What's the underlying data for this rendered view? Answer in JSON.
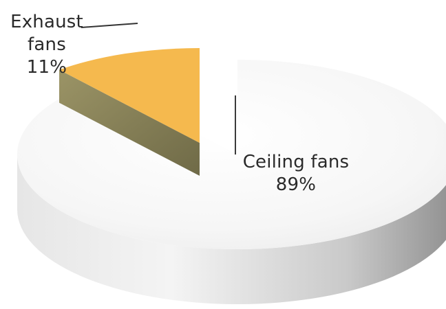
{
  "chart_data": {
    "type": "pie",
    "title": "",
    "style": "3d-exploded",
    "slices": [
      {
        "label": "Ceiling fans",
        "percent_label": "89%",
        "value": 89,
        "color": "#f2f2f2"
      },
      {
        "label": "Exhaust fans",
        "percent_label": "11%",
        "value": 11,
        "color": "#f5b94e"
      }
    ],
    "labels": {
      "ceiling": {
        "name": "Ceiling fans",
        "pct": "89%"
      },
      "exhaust": {
        "line1": "Exhaust",
        "line2": "fans",
        "pct": "11%"
      }
    }
  }
}
